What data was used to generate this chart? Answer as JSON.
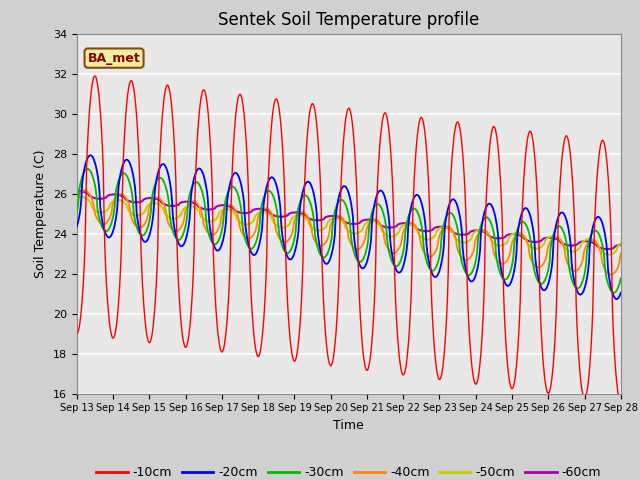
{
  "title": "Sentek Soil Temperature profile",
  "xlabel": "Time",
  "ylabel": "Soil Temperature (C)",
  "annotation": "BA_met",
  "ylim": [
    16,
    34
  ],
  "legend_entries": [
    "-10cm",
    "-20cm",
    "-30cm",
    "-40cm",
    "-50cm",
    "-60cm"
  ],
  "legend_colors": [
    "#ff0000",
    "#0000ff",
    "#00bb00",
    "#ff8800",
    "#cccc00",
    "#aa00aa"
  ],
  "xtick_labels": [
    "Sep 13",
    "Sep 14",
    "Sep 15",
    "Sep 16",
    "Sep 17",
    "Sep 18",
    "Sep 19",
    "Sep 20",
    "Sep 21",
    "Sep 22",
    "Sep 23",
    "Sep 24",
    "Sep 25",
    "Sep 26",
    "Sep 27",
    "Sep 28"
  ],
  "ytick_values": [
    16,
    18,
    20,
    22,
    24,
    26,
    28,
    30,
    32,
    34
  ],
  "fig_width": 6.4,
  "fig_height": 4.8,
  "dpi": 100
}
